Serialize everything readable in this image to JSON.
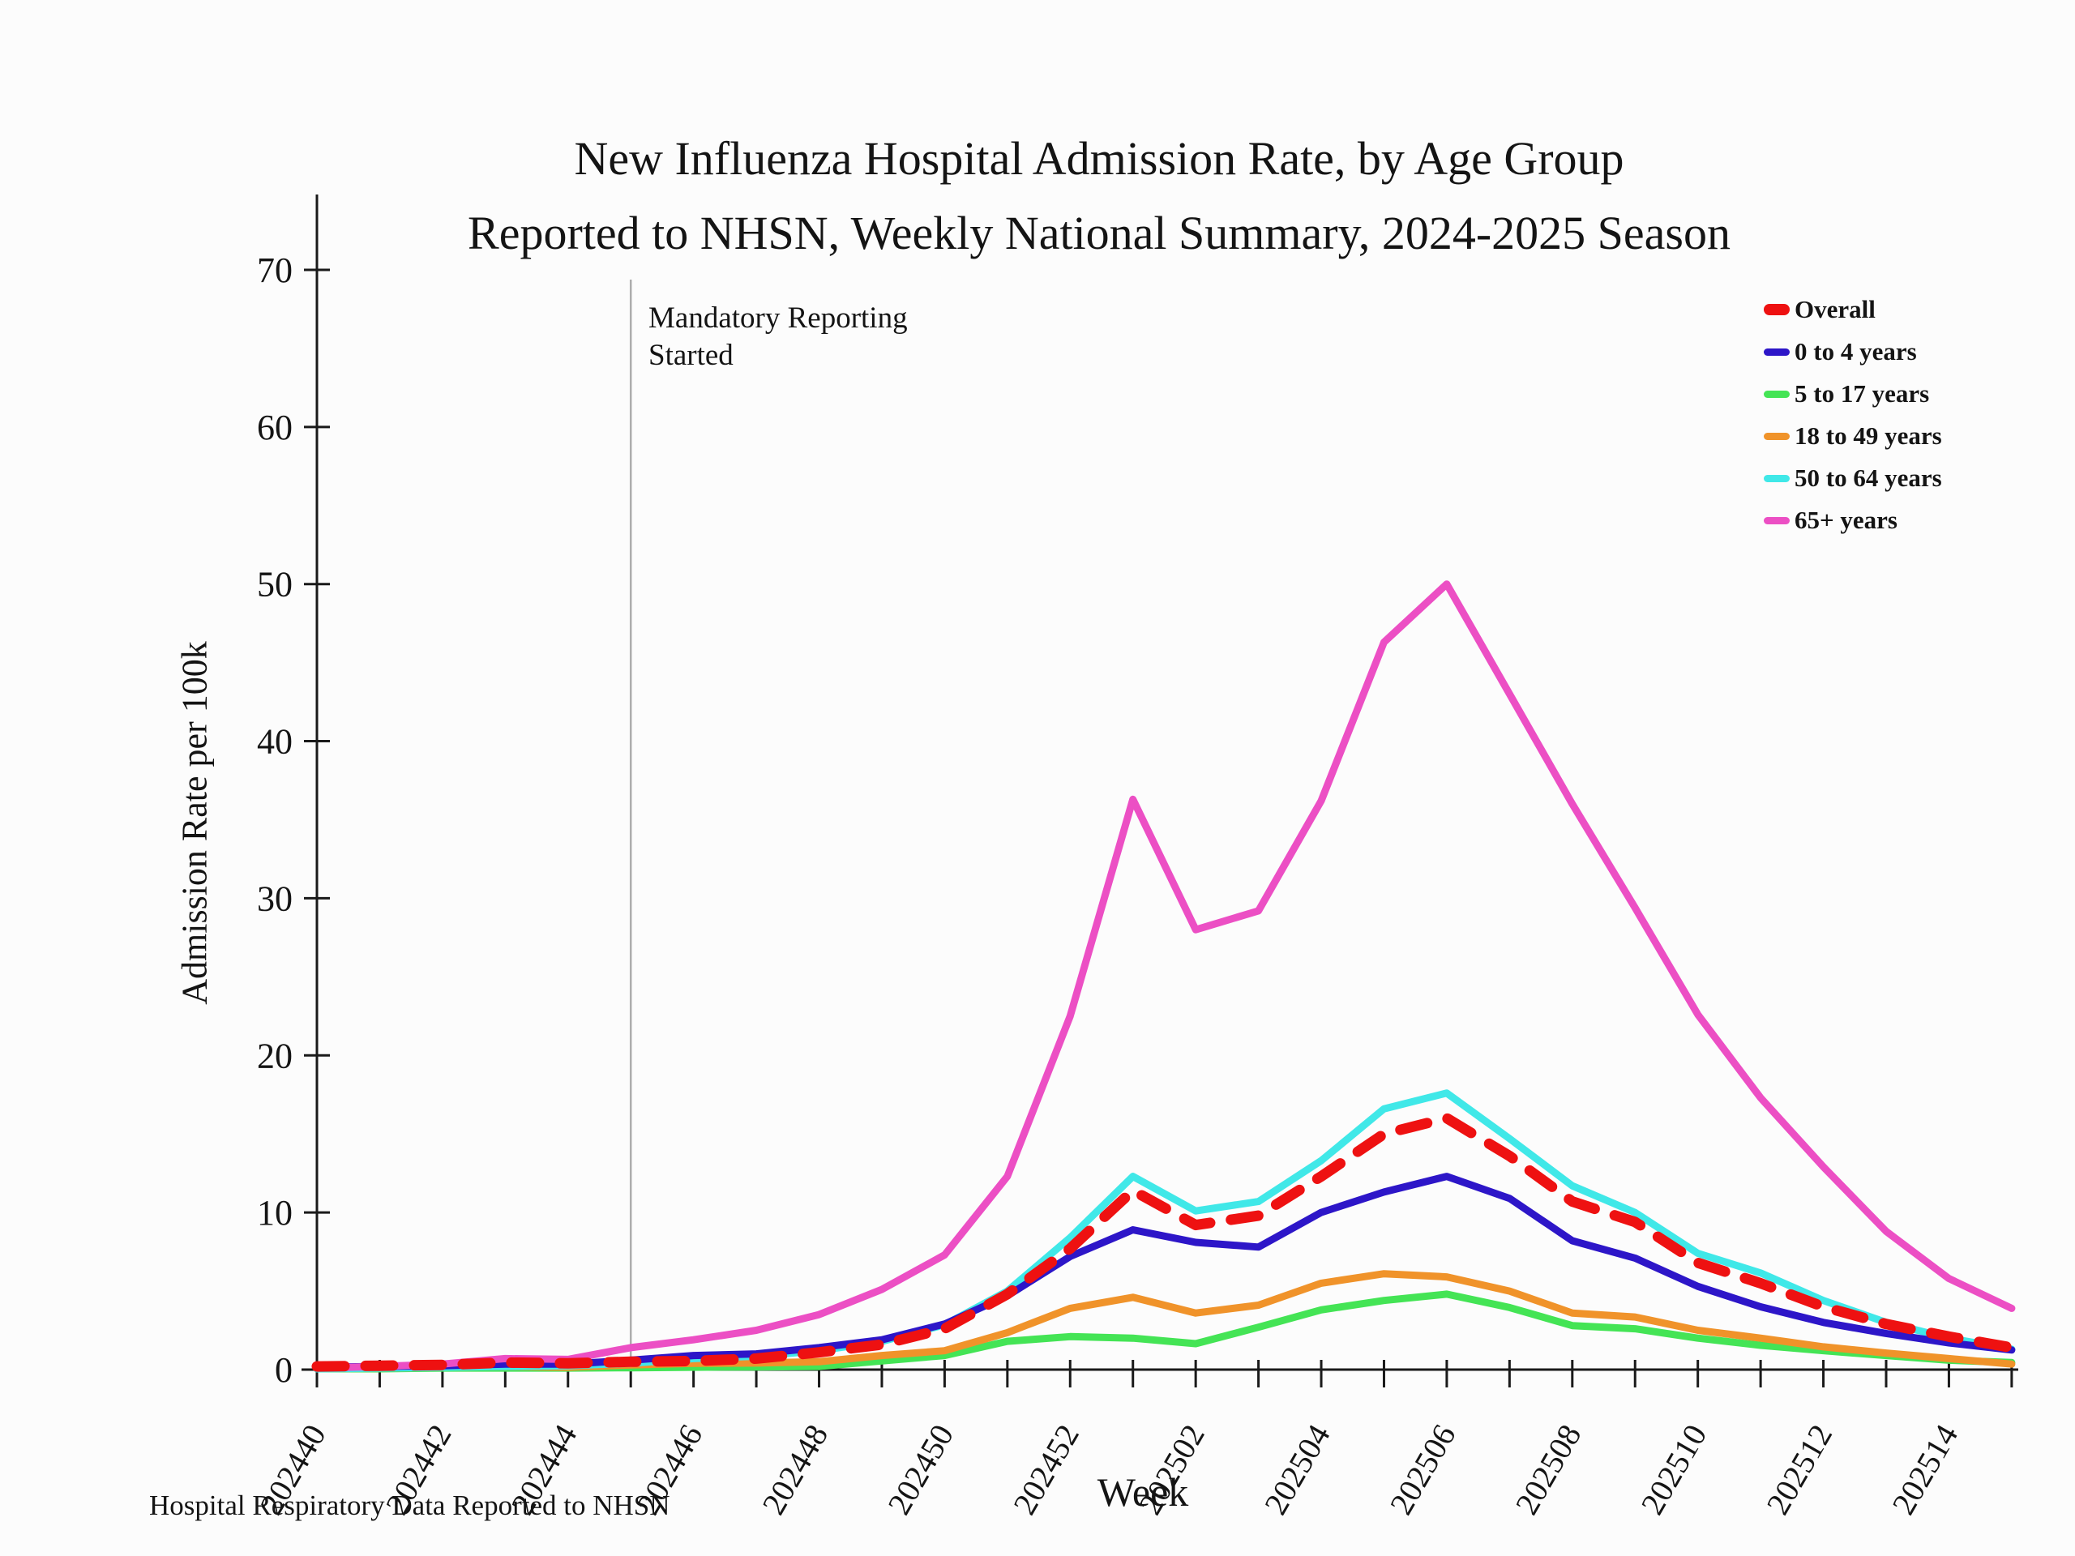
{
  "title": {
    "line1": "New Influenza Hospital Admission Rate, by Age Group",
    "line2": "Reported to NHSN, Weekly National Summary, 2024-2025 Season"
  },
  "axes": {
    "y_label": "Admission Rate per 100k",
    "x_label": "Week",
    "y_ticks": [
      0,
      10,
      20,
      30,
      40,
      50,
      60,
      70
    ],
    "y_max": 70
  },
  "annotation": {
    "line1": "Mandatory Reporting",
    "line2": "Started",
    "week": "202445",
    "line_color": "#adadad"
  },
  "footer": "Hospital Respiratory Data Reported to NHSN",
  "colors": {
    "axis": "#1a1a1a",
    "overall": "#ee1111",
    "age_0_4": "#2d16c8",
    "age_5_17": "#44e455",
    "age_18_49": "#f0932a",
    "age_50_64": "#40e8e8",
    "age_65_plus": "#ec4fc4"
  },
  "chart_data": {
    "type": "line",
    "title": "New Influenza Hospital Admission Rate, by Age Group Reported to NHSN, Weekly National Summary, 2024-2025 Season",
    "xlabel": "Week",
    "ylabel": "Admission Rate per 100k",
    "ylim": [
      0,
      70
    ],
    "grid": false,
    "legend_position": "top-right",
    "x_tick_label_step": 2,
    "x": [
      "202440",
      "202441",
      "202442",
      "202443",
      "202444",
      "202445",
      "202446",
      "202447",
      "202448",
      "202449",
      "202450",
      "202451",
      "202452",
      "202501",
      "202502",
      "202503",
      "202504",
      "202505",
      "202506",
      "202507",
      "202508",
      "202509",
      "202510",
      "202511",
      "202512",
      "202513",
      "202514",
      "202515"
    ],
    "annotation_x": "202445",
    "series": [
      {
        "name": "Overall",
        "color": "#ee1111",
        "dashed": true,
        "width": 13,
        "values": [
          0.2,
          0.25,
          0.3,
          0.45,
          0.4,
          0.5,
          0.55,
          0.7,
          1.1,
          1.6,
          2.6,
          4.8,
          7.7,
          11.4,
          9.2,
          9.8,
          12.3,
          15.0,
          16.0,
          13.6,
          10.7,
          9.4,
          6.8,
          5.5,
          4.0,
          2.9,
          2.1,
          1.4
        ]
      },
      {
        "name": "0 to 4 years",
        "color": "#2d16c8",
        "dashed": false,
        "width": 9,
        "values": [
          0.15,
          0.2,
          0.25,
          0.35,
          0.35,
          0.6,
          0.9,
          1.0,
          1.4,
          1.9,
          2.9,
          4.7,
          7.2,
          8.9,
          8.1,
          7.8,
          10.0,
          11.3,
          12.3,
          10.9,
          8.2,
          7.1,
          5.3,
          4.0,
          3.0,
          2.3,
          1.7,
          1.25
        ]
      },
      {
        "name": "5 to 17 years",
        "color": "#44e455",
        "dashed": false,
        "width": 9,
        "values": [
          0.05,
          0.05,
          0.1,
          0.1,
          0.1,
          0.12,
          0.15,
          0.17,
          0.2,
          0.55,
          0.9,
          1.8,
          2.1,
          2.0,
          1.65,
          2.7,
          3.8,
          4.4,
          4.8,
          3.95,
          2.8,
          2.6,
          2.0,
          1.55,
          1.2,
          0.9,
          0.6,
          0.45
        ]
      },
      {
        "name": "18 to 49 years",
        "color": "#f0932a",
        "dashed": false,
        "width": 9,
        "values": [
          0.1,
          0.1,
          0.15,
          0.2,
          0.15,
          0.3,
          0.4,
          0.42,
          0.5,
          0.9,
          1.2,
          2.35,
          3.9,
          4.6,
          3.6,
          4.1,
          5.5,
          6.1,
          5.9,
          5.0,
          3.6,
          3.35,
          2.5,
          2.0,
          1.45,
          1.05,
          0.7,
          0.35
        ]
      },
      {
        "name": "50 to 64 years",
        "color": "#40e8e8",
        "dashed": false,
        "width": 9,
        "values": [
          0.05,
          0.1,
          0.15,
          0.2,
          0.25,
          0.4,
          0.7,
          0.85,
          1.2,
          1.8,
          2.85,
          5.0,
          8.4,
          12.3,
          10.1,
          10.7,
          13.3,
          16.6,
          17.6,
          14.7,
          11.7,
          10.0,
          7.4,
          6.15,
          4.4,
          3.0,
          2.0,
          1.3
        ]
      },
      {
        "name": "65+ years",
        "color": "#ec4fc4",
        "dashed": false,
        "width": 9,
        "values": [
          0.1,
          0.2,
          0.35,
          0.7,
          0.65,
          1.4,
          1.9,
          2.5,
          3.5,
          5.1,
          7.3,
          12.3,
          22.5,
          36.3,
          28.0,
          29.2,
          36.2,
          46.3,
          50.0,
          43.0,
          36.0,
          29.4,
          22.6,
          17.3,
          12.9,
          8.8,
          5.8,
          3.9
        ]
      }
    ]
  }
}
